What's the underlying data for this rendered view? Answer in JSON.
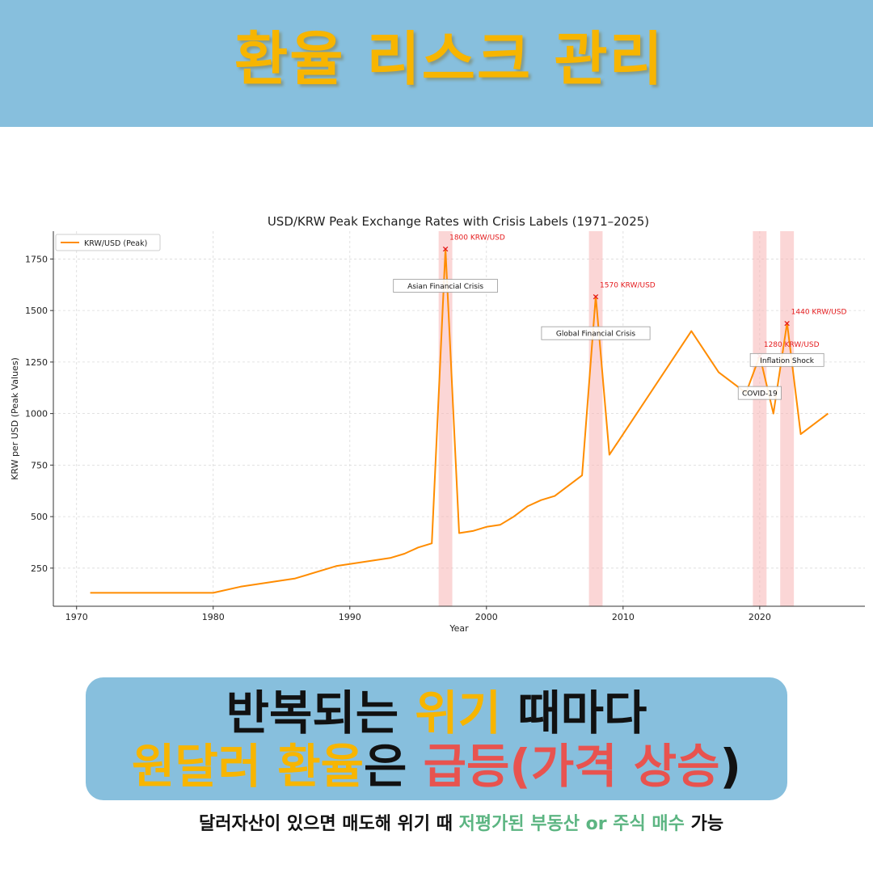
{
  "header": {
    "title": "환율 리스크 관리"
  },
  "chart_data": {
    "type": "line",
    "title": "USD/KRW Peak Exchange Rates with Crisis Labels (1971–2025)",
    "xlabel": "Year",
    "ylabel": "KRW per USD (Peak Values)",
    "xlim": [
      1968.3,
      2027.7
    ],
    "ylim": [
      65,
      1885
    ],
    "xticks": [
      1970,
      1980,
      1990,
      2000,
      2010,
      2020
    ],
    "yticks": [
      250,
      500,
      750,
      1000,
      1250,
      1500,
      1750
    ],
    "grid": true,
    "legend": {
      "position": "top-left",
      "label": "KRW/USD (Peak)"
    },
    "series": [
      {
        "name": "KRW/USD (Peak)",
        "color": "#ff8c00",
        "x": [
          1971,
          1980,
          1982,
          1986,
          1989,
          1993,
          1994,
          1995,
          1996,
          1997,
          1998,
          1999,
          2000,
          2001,
          2002,
          2003,
          2004,
          2005,
          2007,
          2008,
          2009,
          2015,
          2017,
          2019,
          2020,
          2021,
          2022,
          2023,
          2025
        ],
        "y": [
          130,
          130,
          160,
          200,
          260,
          300,
          320,
          350,
          370,
          1800,
          420,
          430,
          450,
          460,
          500,
          550,
          580,
          600,
          700,
          1570,
          800,
          1400,
          1200,
          1100,
          1280,
          1000,
          1440,
          900,
          1000
        ]
      }
    ],
    "shaded_spans": [
      {
        "from": 1996.5,
        "to": 1997.5,
        "color": "#f8b4b4"
      },
      {
        "from": 2007.5,
        "to": 2008.5,
        "color": "#f8b4b4"
      },
      {
        "from": 2019.5,
        "to": 2020.5,
        "color": "#f8b4b4"
      },
      {
        "from": 2021.5,
        "to": 2022.5,
        "color": "#f8b4b4"
      }
    ],
    "peaks": [
      {
        "x": 1997,
        "y": 1800,
        "label": "1800 KRW/USD"
      },
      {
        "x": 2008,
        "y": 1570,
        "label": "1570 KRW/USD"
      },
      {
        "x": 2020,
        "y": 1280,
        "label": "1280 KRW/USD"
      },
      {
        "x": 2022,
        "y": 1440,
        "label": "1440 KRW/USD"
      }
    ],
    "crisis_labels": [
      {
        "text": "Asian Financial Crisis",
        "x": 1997,
        "y": 1620
      },
      {
        "text": "Global Financial Crisis",
        "x": 2008,
        "y": 1390
      },
      {
        "text": "Inflation Shock",
        "x": 2022,
        "y": 1260
      },
      {
        "text": "COVID-19",
        "x": 2020,
        "y": 1100
      }
    ]
  },
  "callout": {
    "line1": {
      "a": "반복되는 ",
      "b": "위기",
      "c": " 때마다"
    },
    "line2": {
      "a": "원달러 환율",
      "b": "은 ",
      "c": "급등(",
      "d": "가격 상승",
      "e": ")"
    }
  },
  "footer": {
    "a": "달러자산이 있으면 매도해 위기 때 ",
    "b": "저평가된 부동산 or 주식 매수",
    "c": " 가능"
  },
  "colors": {
    "header_bg": "#87bfdd",
    "accent_orange": "#f7b500",
    "accent_red": "#e8534f",
    "accent_green": "#5cb582"
  }
}
